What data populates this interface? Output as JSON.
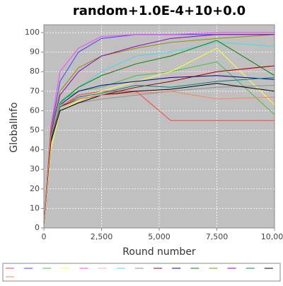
{
  "chart_data": {
    "type": "line",
    "title": "random+1.0E-4+10+0.0",
    "x_label": "Round number",
    "y_label": "GlobalInfo",
    "x": [
      0,
      300,
      700,
      1500,
      2500,
      4000,
      5500,
      7500,
      10000
    ],
    "xlim": [
      0,
      10000
    ],
    "xticks": [
      0,
      {
        "value": 2500,
        "label": "2,500"
      },
      {
        "value": 5000,
        "label": "5,000"
      },
      {
        "value": 7500,
        "label": "7,500"
      },
      {
        "value": 10000,
        "label": "10,000"
      }
    ],
    "ylim": [
      0,
      104
    ],
    "yticks": [
      0,
      10,
      20,
      30,
      40,
      50,
      60,
      70,
      80,
      90,
      100
    ],
    "grid": true,
    "legend": "bottom",
    "series": [
      {
        "color": "#ff4040",
        "values": [
          2,
          45,
          62,
          68,
          70,
          70,
          55,
          55,
          55
        ]
      },
      {
        "color": "#4040ff",
        "values": [
          2,
          50,
          75,
          90,
          97,
          99,
          99,
          99,
          99
        ]
      },
      {
        "color": "#40c040",
        "values": [
          2,
          48,
          65,
          70,
          72,
          78,
          80,
          85,
          58
        ]
      },
      {
        "color": "#ffff40",
        "values": [
          2,
          40,
          60,
          65,
          70,
          75,
          80,
          92,
          63
        ]
      },
      {
        "color": "#ff40ff",
        "values": [
          2,
          52,
          80,
          92,
          98,
          99,
          99,
          100,
          100
        ]
      },
      {
        "color": "#ffa0c0",
        "values": [
          2,
          45,
          66,
          75,
          80,
          82,
          78,
          80,
          82
        ]
      },
      {
        "color": "#40e0e0",
        "values": [
          2,
          48,
          65,
          72,
          80,
          88,
          90,
          95,
          93
        ]
      },
      {
        "color": "#909090",
        "values": [
          2,
          44,
          60,
          64,
          66,
          68,
          70,
          72,
          73
        ]
      },
      {
        "color": "#900000",
        "values": [
          2,
          46,
          62,
          66,
          68,
          72,
          75,
          80,
          83
        ]
      },
      {
        "color": "#000090",
        "values": [
          2,
          47,
          63,
          70,
          73,
          75,
          77,
          78,
          76
        ]
      },
      {
        "color": "#008000",
        "values": [
          2,
          45,
          64,
          72,
          78,
          84,
          88,
          96,
          78
        ]
      },
      {
        "color": "#909000",
        "values": [
          2,
          50,
          70,
          82,
          88,
          92,
          95,
          97,
          99
        ]
      },
      {
        "color": "#9000c0",
        "values": [
          2,
          48,
          68,
          80,
          88,
          93,
          97,
          99,
          99
        ]
      },
      {
        "color": "#008080",
        "values": [
          2,
          46,
          62,
          67,
          69,
          73,
          72,
          75,
          77
        ]
      },
      {
        "color": "#000000",
        "values": [
          2,
          44,
          60,
          64,
          68,
          70,
          71,
          74,
          70
        ]
      },
      {
        "color": "#ff8060",
        "values": [
          2,
          47,
          63,
          66,
          68,
          69,
          70,
          66,
          67
        ]
      }
    ]
  }
}
